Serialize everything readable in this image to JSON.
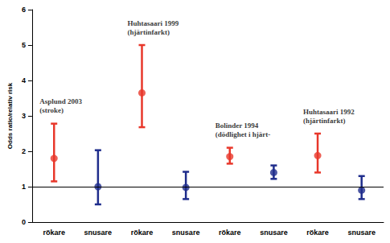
{
  "chart_data": {
    "type": "scatter",
    "y_label": "Odds ratio/relativ risk",
    "categories": [
      "rökare",
      "snusare",
      "rökare",
      "snusare",
      "rökare",
      "snusare",
      "rökare",
      "snusare"
    ],
    "values": [
      1.8,
      1.0,
      3.65,
      0.98,
      1.85,
      1.4,
      1.88,
      0.9
    ],
    "error_low": [
      1.15,
      0.5,
      2.68,
      0.65,
      1.65,
      1.22,
      1.4,
      0.65
    ],
    "error_high": [
      2.78,
      2.03,
      5.0,
      1.42,
      2.1,
      1.6,
      2.5,
      1.3
    ],
    "colors": [
      "#e8372a",
      "#1f2d8c",
      "#e8372a",
      "#1f2d8c",
      "#e8372a",
      "#1f2d8c",
      "#e8372a",
      "#1f2d8c"
    ],
    "annotations": [
      [
        "Asplund 2003",
        "(stroke)"
      ],
      [
        "Huhtasaari 1999",
        "(hjärtinfarkt)"
      ],
      [
        "Bolinder 1994",
        "(dödlighet i hjärt-"
      ],
      [
        "Huhtasaari 1992",
        "(hjärtinfarkt)"
      ]
    ],
    "reference_line": 1,
    "ylim": [
      0,
      6
    ],
    "yticks": [
      0,
      1,
      2,
      3,
      4,
      5,
      6
    ],
    "grid": false
  }
}
